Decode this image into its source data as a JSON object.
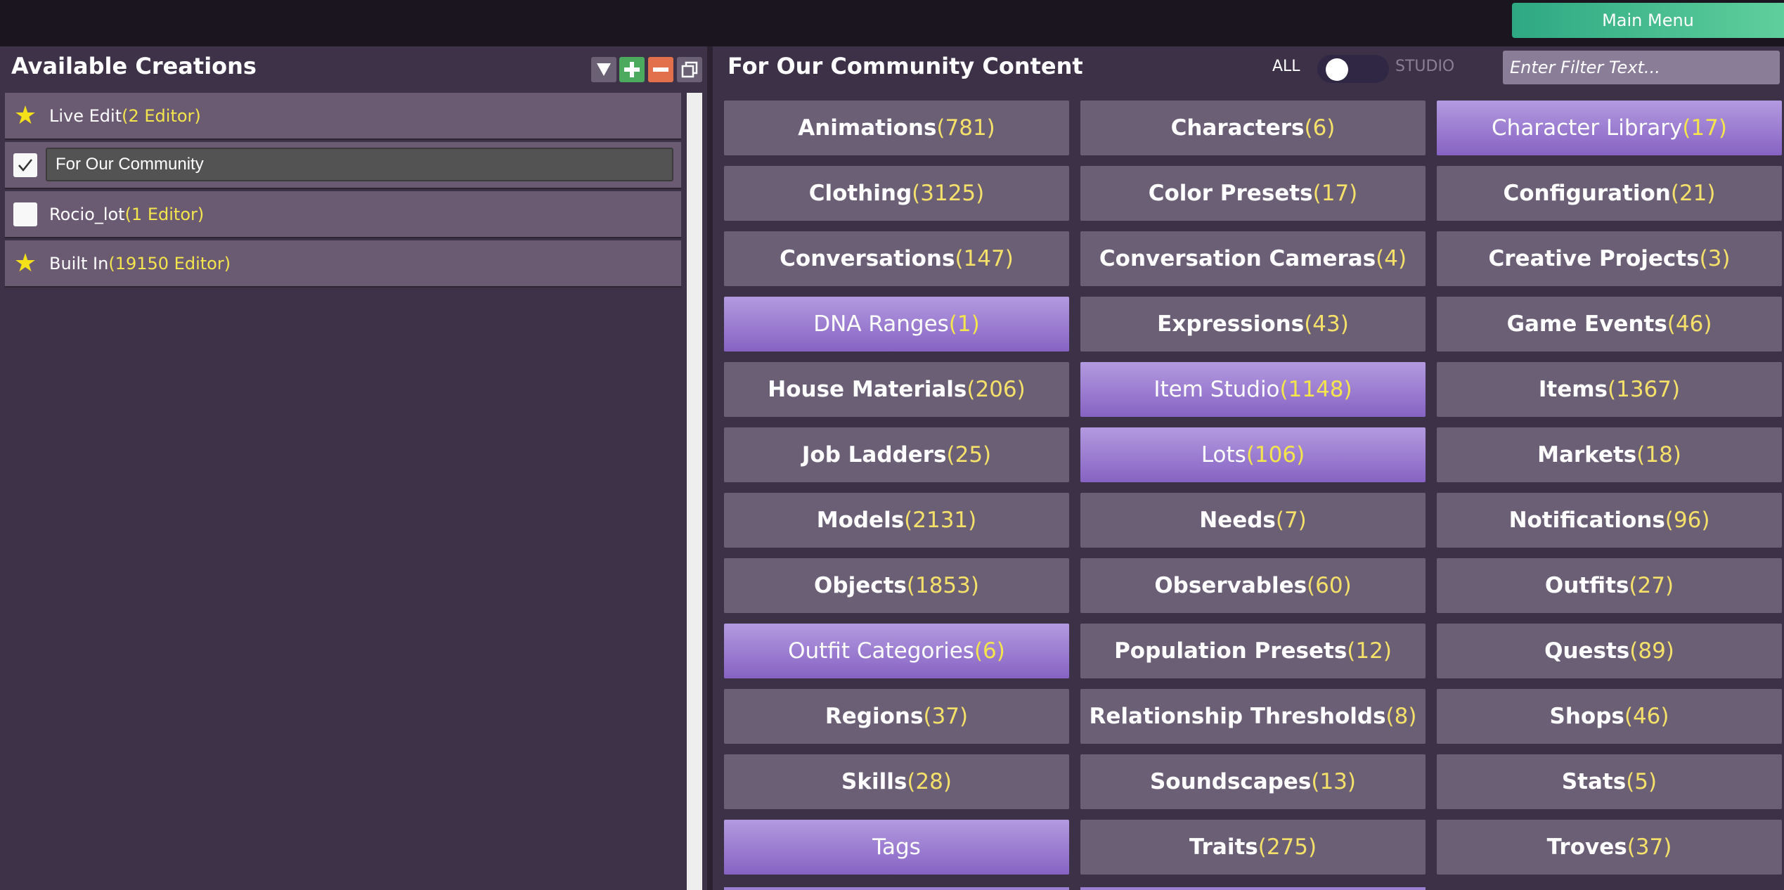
{
  "top_bar": {
    "main_menu_label": "Main Menu"
  },
  "left": {
    "title": "Available Creations",
    "rows": [
      {
        "label": "Live Edit",
        "editors": "(2 Editor)",
        "icon": "star-icon"
      },
      {
        "value": "For Our Community",
        "checked": true
      },
      {
        "label": "Rocio_lot",
        "editors": "(1 Editor)",
        "checked": false
      },
      {
        "label": "Built In",
        "editors": "(19150 Editor)",
        "icon": "star-icon"
      }
    ]
  },
  "right": {
    "title": "For Our Community Content",
    "toggle_all": "ALL",
    "toggle_studio": "STUDIO",
    "filter_placeholder": "Enter Filter Text...",
    "categories": [
      {
        "name": "Animations",
        "count": "(781)"
      },
      {
        "name": "Characters",
        "count": "(6)"
      },
      {
        "name": "Character Library",
        "count": "(17)"
      },
      {
        "name": "Clothing",
        "count": "(3125)"
      },
      {
        "name": "Color Presets",
        "count": "(17)"
      },
      {
        "name": "Configuration",
        "count": "(21)"
      },
      {
        "name": "Conversations",
        "count": "(147)"
      },
      {
        "name": "Conversation Cameras",
        "count": "(4)"
      },
      {
        "name": "Creative Projects",
        "count": "(3)"
      },
      {
        "name": "DNA Ranges",
        "count": "(1)"
      },
      {
        "name": "Expressions",
        "count": "(43)"
      },
      {
        "name": "Game Events",
        "count": "(46)"
      },
      {
        "name": "House Materials",
        "count": "(206)"
      },
      {
        "name": "Item Studio",
        "count": "(1148)"
      },
      {
        "name": "Items",
        "count": "(1367)"
      },
      {
        "name": "Job Ladders",
        "count": "(25)"
      },
      {
        "name": "Lots",
        "count": "(106)"
      },
      {
        "name": "Markets",
        "count": "(18)"
      },
      {
        "name": "Models",
        "count": "(2131)"
      },
      {
        "name": "Needs",
        "count": "(7)"
      },
      {
        "name": "Notifications",
        "count": "(96)"
      },
      {
        "name": "Objects",
        "count": "(1853)"
      },
      {
        "name": "Observables",
        "count": "(60)"
      },
      {
        "name": "Outfits",
        "count": "(27)"
      },
      {
        "name": "Outfit Categories",
        "count": "(6)"
      },
      {
        "name": "Population Presets",
        "count": "(12)"
      },
      {
        "name": "Quests",
        "count": "(89)"
      },
      {
        "name": "Regions",
        "count": "(37)"
      },
      {
        "name": "Relationship Thresholds",
        "count": "(8)"
      },
      {
        "name": "Shops",
        "count": "(46)"
      },
      {
        "name": "Skills",
        "count": "(28)"
      },
      {
        "name": "Soundscapes",
        "count": "(13)"
      },
      {
        "name": "Stats",
        "count": "(5)"
      },
      {
        "name": "Tags",
        "count": ""
      },
      {
        "name": "Traits",
        "count": "(275)"
      },
      {
        "name": "Troves",
        "count": "(37)"
      }
    ]
  },
  "colors": {
    "panel_bg": "#3e3248",
    "tile_bg": "#6b5f76",
    "tile_highlight": "#9b7fd0",
    "count_text": "#f5e16a",
    "main_menu": "#3fb98c"
  }
}
